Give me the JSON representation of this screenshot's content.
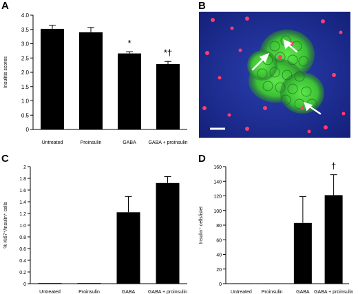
{
  "panels": {
    "A": "A",
    "B": "B",
    "C": "C",
    "D": "D"
  },
  "colors": {
    "bar": "#000000",
    "axis": "#000000",
    "micro_bg": "#1a2a8c",
    "gfp": "#4ddc3c",
    "nuclei": "#ff3c6e",
    "arrow": "#ffffff"
  },
  "chart_data": [
    {
      "id": "A",
      "type": "bar",
      "ylabel": "Insulitis scores",
      "categories": [
        "Untreated",
        "Proinsulin",
        "GABA",
        "GABA + proinsulin"
      ],
      "values": [
        3.52,
        3.4,
        2.66,
        2.29
      ],
      "errors": [
        0.13,
        0.17,
        0.06,
        0.09
      ],
      "annotations": [
        "",
        "",
        "*",
        "*†"
      ],
      "ylim": [
        0,
        4
      ],
      "yticks": [
        "0",
        "0.5",
        "1.0",
        "1.5",
        "2.0",
        "2.5",
        "3.0",
        "3.5",
        "4.0"
      ],
      "grid": false
    },
    {
      "id": "C",
      "type": "bar",
      "ylabel": "% Ki67⁺/insulin⁺ cells",
      "categories": [
        "Untreated",
        "Proinsulin",
        "GABA",
        "GABA + proinsulin"
      ],
      "values": [
        0.01,
        0.01,
        1.22,
        1.72
      ],
      "errors": [
        0,
        0,
        0.27,
        0.11
      ],
      "annotations": [
        "",
        "",
        "",
        ""
      ],
      "ylim": [
        0,
        2
      ],
      "yticks": [
        "0",
        "0.2",
        "0.4",
        "0.6",
        "0.8",
        "1.0",
        "1.2",
        "1.4",
        "1.6",
        "1.8",
        "2"
      ],
      "grid": false
    },
    {
      "id": "D",
      "type": "bar",
      "ylabel": "Insulin⁺ cells/islet",
      "categories": [
        "Untreated",
        "Proinsulin",
        "GABA",
        "GABA + proinsulin"
      ],
      "values": [
        0.5,
        0.5,
        83,
        121
      ],
      "errors": [
        0,
        0,
        36,
        28
      ],
      "annotations": [
        "",
        "",
        "",
        "†"
      ],
      "ylim": [
        0,
        160
      ],
      "yticks": [
        "0",
        "20",
        "40",
        "60",
        "80",
        "100",
        "120",
        "140",
        "160"
      ],
      "grid": false
    }
  ]
}
